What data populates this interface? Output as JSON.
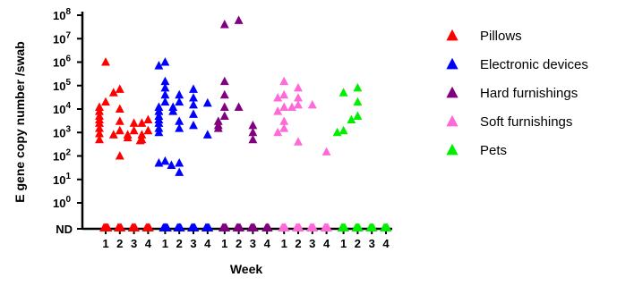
{
  "chart_data": {
    "type": "scatter",
    "xlabel": "Week",
    "ylabel": "E gene copy number /swab",
    "y_scale": "log10",
    "ylim_log10": [
      0,
      8
    ],
    "y_ticks": [
      {
        "exp": 8,
        "base": "10",
        "sup": "8"
      },
      {
        "exp": 7,
        "base": "10",
        "sup": "7"
      },
      {
        "exp": 6,
        "base": "10",
        "sup": "6"
      },
      {
        "exp": 5,
        "base": "10",
        "sup": "5"
      },
      {
        "exp": 4,
        "base": "10",
        "sup": "4"
      },
      {
        "exp": 3,
        "base": "10",
        "sup": "3"
      },
      {
        "exp": 2,
        "base": "10",
        "sup": "2"
      },
      {
        "exp": 1,
        "base": "10",
        "sup": "1"
      },
      {
        "exp": 0,
        "base": "10",
        "sup": "0"
      }
    ],
    "nd_label": "ND",
    "x_tick_labels": [
      "1",
      "2",
      "3",
      "4"
    ],
    "legend_position": "right",
    "marker": "triangle",
    "series": [
      {
        "name": "Pillows",
        "color": "#ff0000",
        "weeks": [
          {
            "week": 1,
            "values": [
              1000000,
              20000,
              12000,
              8000,
              5000,
              3500,
              2500,
              1500,
              900,
              500
            ],
            "nd_count": 6
          },
          {
            "week": 2,
            "values": [
              70000,
              50000,
              10000,
              3000,
              1200,
              800,
              100
            ],
            "nd_count": 5
          },
          {
            "week": 3,
            "values": [
              2500,
              1200,
              800,
              600,
              450
            ],
            "nd_count": 5
          },
          {
            "week": 4,
            "values": [
              3500,
              2500,
              1200,
              800,
              500
            ],
            "nd_count": 5
          }
        ]
      },
      {
        "name": "Electronic devices",
        "color": "#0000ff",
        "weeks": [
          {
            "week": 1,
            "values": [
              1000000,
              700000,
              150000,
              80000,
              40000,
              20000,
              12000,
              8000,
              5000,
              3500,
              2500,
              1500,
              1000,
              60,
              50,
              40
            ],
            "nd_count": 6
          },
          {
            "week": 2,
            "values": [
              40000,
              20000,
              12000,
              8000,
              3000,
              1500,
              50,
              20
            ],
            "nd_count": 5
          },
          {
            "week": 3,
            "values": [
              70000,
              30000,
              15000,
              6000,
              2000
            ],
            "nd_count": 5
          },
          {
            "week": 4,
            "values": [
              18000,
              800
            ],
            "nd_count": 5
          }
        ]
      },
      {
        "name": "Hard furnishings",
        "color": "#800080",
        "weeks": [
          {
            "week": 1,
            "values": [
              40000000,
              150000,
              40000,
              12000,
              5000,
              3000,
              2000,
              1500
            ],
            "nd_count": 5
          },
          {
            "week": 2,
            "values": [
              60000000,
              12000
            ],
            "nd_count": 5
          },
          {
            "week": 3,
            "values": [
              2000,
              1000,
              500
            ],
            "nd_count": 5
          },
          {
            "week": 4,
            "values": [],
            "nd_count": 4
          }
        ]
      },
      {
        "name": "Soft furnishings",
        "color": "#ff69d8",
        "weeks": [
          {
            "week": 1,
            "values": [
              150000,
              40000,
              30000,
              12000,
              8000,
              3000,
              1500,
              1000
            ],
            "nd_count": 5
          },
          {
            "week": 2,
            "values": [
              80000,
              30000,
              15000,
              12000,
              400
            ],
            "nd_count": 5
          },
          {
            "week": 3,
            "values": [
              15000
            ],
            "nd_count": 5
          },
          {
            "week": 4,
            "values": [
              150
            ],
            "nd_count": 5
          }
        ]
      },
      {
        "name": "Pets",
        "color": "#00ee00",
        "weeks": [
          {
            "week": 1,
            "values": [
              50000,
              1200,
              1000
            ],
            "nd_count": 5
          },
          {
            "week": 2,
            "values": [
              80000,
              20000,
              5000,
              3500
            ],
            "nd_count": 5
          },
          {
            "week": 3,
            "values": [],
            "nd_count": 5
          },
          {
            "week": 4,
            "values": [],
            "nd_count": 5
          }
        ]
      }
    ]
  }
}
